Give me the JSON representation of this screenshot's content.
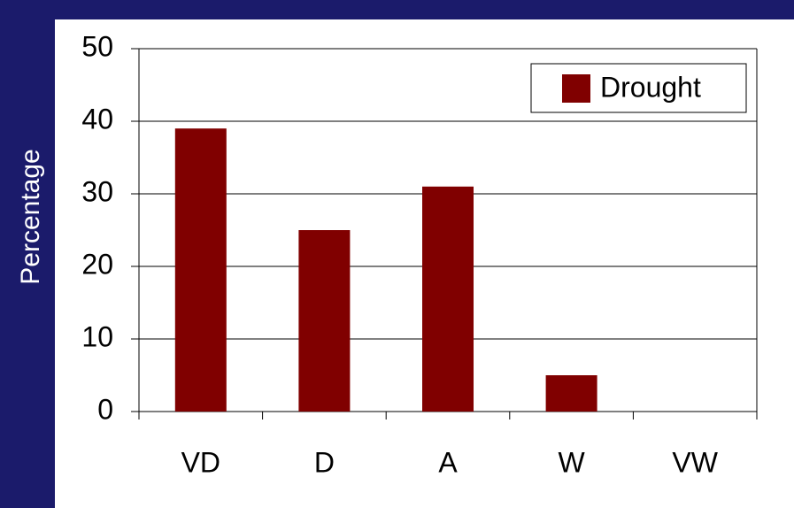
{
  "chart_data": {
    "type": "bar",
    "y_label": "Percentage",
    "categories": [
      "VD",
      "D",
      "A",
      "W",
      "VW"
    ],
    "series": [
      {
        "name": "Drought",
        "color": "#800000",
        "values": [
          39,
          25,
          31,
          5,
          0
        ]
      }
    ],
    "ylim": [
      0,
      50
    ],
    "yticks": [
      0,
      10,
      20,
      30,
      40,
      50
    ],
    "grid": true,
    "legend": "upper right"
  }
}
